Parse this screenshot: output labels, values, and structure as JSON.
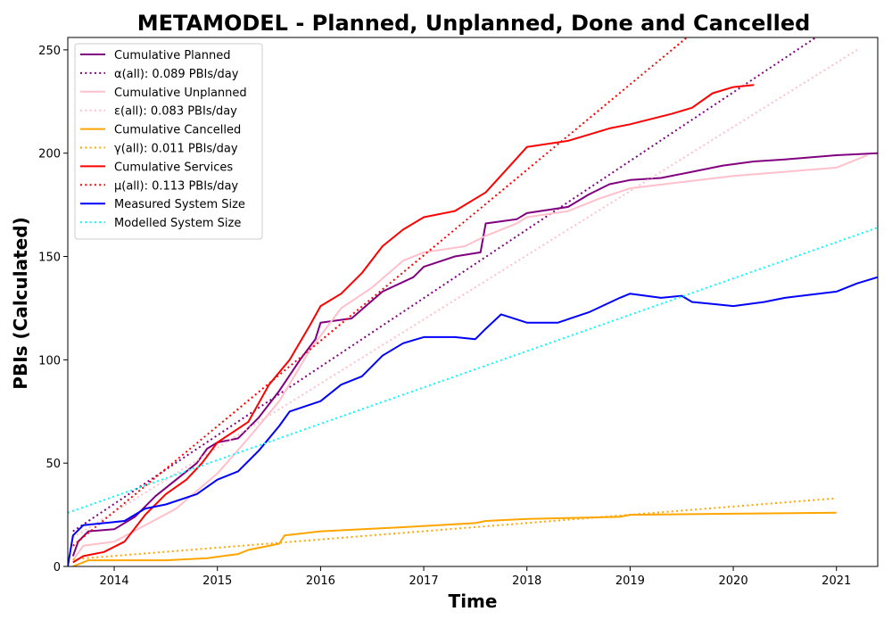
{
  "chart_data": {
    "type": "line",
    "title": "METAMODEL - Planned, Unplanned, Done  and Cancelled",
    "xlabel": "Time",
    "ylabel": "PBIs (Calculated)",
    "xlim": [
      2013.55,
      2021.4
    ],
    "ylim": [
      0,
      256
    ],
    "x_ticks": [
      2014,
      2015,
      2016,
      2017,
      2018,
      2019,
      2020,
      2021
    ],
    "x_tick_labels": [
      "2014",
      "2015",
      "2016",
      "2017",
      "2018",
      "2019",
      "2020",
      "2021"
    ],
    "y_ticks": [
      0,
      50,
      100,
      150,
      200,
      250
    ],
    "y_tick_labels": [
      "0",
      "50",
      "100",
      "150",
      "200",
      "250"
    ],
    "grid": false,
    "legend_position": "top-left",
    "series": [
      {
        "name": "Cumulative Planned",
        "color": "#800080",
        "style": "solid",
        "x": [
          2013.6,
          2013.65,
          2013.75,
          2014.0,
          2014.2,
          2014.4,
          2014.6,
          2014.8,
          2014.9,
          2015.0,
          2015.2,
          2015.4,
          2015.6,
          2015.8,
          2015.95,
          2016.0,
          2016.3,
          2016.6,
          2016.9,
          2017.0,
          2017.3,
          2017.55,
          2017.6,
          2017.9,
          2018.0,
          2018.4,
          2018.6,
          2018.8,
          2019.0,
          2019.3,
          2019.6,
          2019.9,
          2020.2,
          2020.5,
          2021.0,
          2021.4
        ],
        "y": [
          5,
          12,
          17,
          18,
          24,
          34,
          42,
          50,
          57,
          60,
          62,
          72,
          85,
          100,
          110,
          118,
          120,
          133,
          140,
          145,
          150,
          152,
          166,
          168,
          171,
          174,
          180,
          185,
          187,
          188,
          191,
          194,
          196,
          197,
          199,
          200
        ]
      },
      {
        "name": "α(all): 0.089 PBIs/day",
        "color": "#800080",
        "style": "dotted",
        "x": [
          2013.6,
          2020.8
        ],
        "y": [
          17,
          256
        ]
      },
      {
        "name": "Cumulative Unplanned",
        "color": "#ffc0cb",
        "style": "solid",
        "x": [
          2013.6,
          2013.7,
          2014.0,
          2014.3,
          2014.6,
          2015.0,
          2015.3,
          2015.6,
          2015.9,
          2016.2,
          2016.5,
          2016.8,
          2017.0,
          2017.4,
          2017.6,
          2017.9,
          2018.0,
          2018.4,
          2018.7,
          2019.0,
          2019.5,
          2020.0,
          2020.5,
          2021.0,
          2021.3
        ],
        "y": [
          3,
          10,
          12,
          20,
          28,
          45,
          62,
          80,
          105,
          125,
          135,
          148,
          152,
          155,
          160,
          166,
          169,
          172,
          178,
          183,
          186,
          189,
          191,
          193,
          199
        ]
      },
      {
        "name": "ε(all): 0.083 PBIs/day",
        "color": "#ffc0cb",
        "style": "dotted",
        "x": [
          2013.6,
          2021.2
        ],
        "y": [
          14,
          250
        ]
      },
      {
        "name": "Cumulative Cancelled",
        "color": "#ffa500",
        "style": "solid",
        "x": [
          2013.6,
          2013.75,
          2014.5,
          2014.9,
          2015.2,
          2015.3,
          2015.6,
          2015.65,
          2016.0,
          2016.8,
          2017.5,
          2017.6,
          2018.0,
          2018.9,
          2019.0,
          2020.0,
          2021.0
        ],
        "y": [
          0,
          3,
          3,
          4,
          6,
          8,
          11,
          15,
          17,
          19,
          21,
          22,
          23,
          24,
          25,
          25.5,
          26
        ]
      },
      {
        "name": "γ(all): 0.011 PBIs/day",
        "color": "#ffa500",
        "style": "dotted",
        "x": [
          2013.6,
          2021.0
        ],
        "y": [
          3.5,
          33
        ]
      },
      {
        "name": "Cumulative Services",
        "color": "#ff0000",
        "style": "solid",
        "x": [
          2013.6,
          2013.7,
          2013.9,
          2014.1,
          2014.3,
          2014.5,
          2014.7,
          2014.85,
          2015.0,
          2015.3,
          2015.5,
          2015.7,
          2015.9,
          2016.0,
          2016.2,
          2016.4,
          2016.6,
          2016.8,
          2017.0,
          2017.3,
          2017.6,
          2017.8,
          2018.0,
          2018.4,
          2018.8,
          2019.0,
          2019.4,
          2019.6,
          2019.8,
          2020.0,
          2020.2
        ],
        "y": [
          2,
          5,
          7,
          12,
          25,
          35,
          42,
          50,
          60,
          70,
          88,
          100,
          117,
          126,
          132,
          142,
          155,
          163,
          169,
          172,
          181,
          192,
          203,
          206,
          212,
          214,
          219,
          222,
          229,
          232,
          233
        ]
      },
      {
        "name": "μ(all): 0.113 PBIs/day",
        "color": "#ff0000",
        "style": "dotted",
        "x": [
          2013.6,
          2019.55
        ],
        "y": [
          10,
          256
        ]
      },
      {
        "name": "Measured System Size",
        "color": "#0000ff",
        "style": "solid",
        "x": [
          2013.55,
          2013.6,
          2013.7,
          2013.9,
          2014.1,
          2014.3,
          2014.5,
          2014.8,
          2015.0,
          2015.2,
          2015.4,
          2015.6,
          2015.7,
          2016.0,
          2016.2,
          2016.4,
          2016.6,
          2016.8,
          2017.0,
          2017.3,
          2017.5,
          2017.6,
          2017.75,
          2018.0,
          2018.3,
          2018.6,
          2018.9,
          2019.0,
          2019.3,
          2019.5,
          2019.6,
          2019.8,
          2020.0,
          2020.3,
          2020.5,
          2021.0,
          2021.2,
          2021.4
        ],
        "y": [
          0,
          15,
          20,
          21,
          22,
          28,
          30,
          35,
          42,
          46,
          56,
          68,
          75,
          80,
          88,
          92,
          102,
          108,
          111,
          111,
          110,
          115,
          122,
          118,
          118,
          123,
          130,
          132,
          130,
          131,
          128,
          127,
          126,
          128,
          130,
          133,
          137,
          140
        ]
      },
      {
        "name": "Modelled System Size",
        "color": "#00ffff",
        "style": "dotted",
        "x": [
          2013.55,
          2021.4
        ],
        "y": [
          26,
          164
        ]
      }
    ]
  }
}
